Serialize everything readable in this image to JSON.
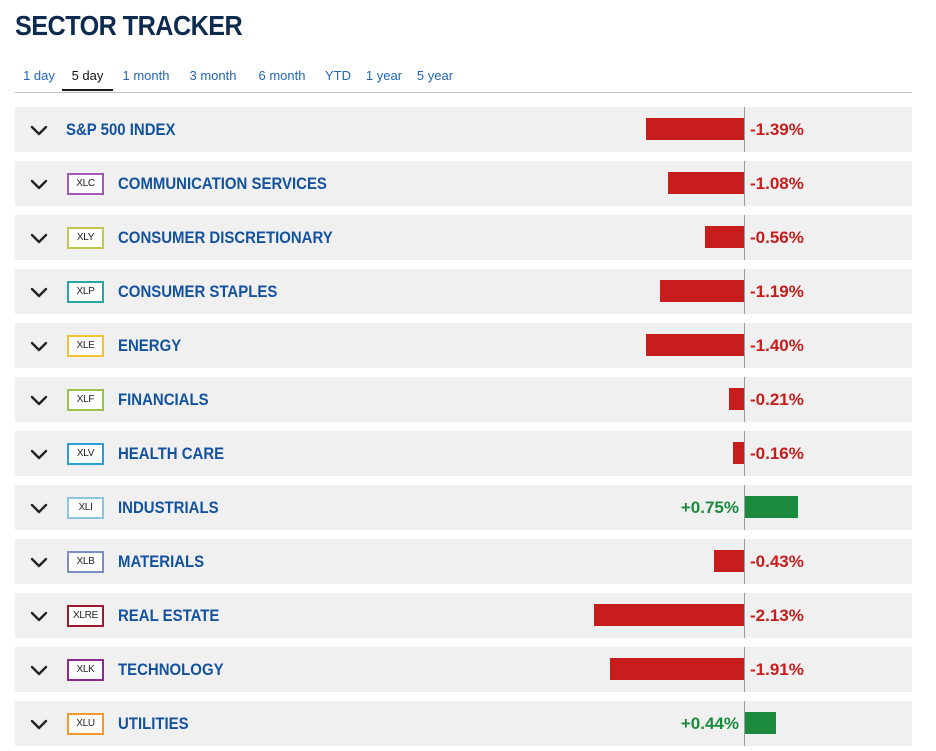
{
  "title": "SECTOR TRACKER",
  "tabs": [
    {
      "label": "1 day",
      "active": false
    },
    {
      "label": "5 day",
      "active": true
    },
    {
      "label": "1 month",
      "active": false
    },
    {
      "label": "3 month",
      "active": false
    },
    {
      "label": "6 month",
      "active": false
    },
    {
      "label": "YTD",
      "active": false
    },
    {
      "label": "1 year",
      "active": false
    },
    {
      "label": "5 year",
      "active": false
    }
  ],
  "colors": {
    "negative": "#c71d1d",
    "positive": "#1c8a3d",
    "link": "#12529e",
    "title": "#0d2b4e",
    "row_bg": "#f0f0f0"
  },
  "sectors": [
    {
      "ticker": null,
      "name": "S&P 500 INDEX",
      "change": -1.39,
      "change_label": "-1.39%",
      "badge_color": null
    },
    {
      "ticker": "XLC",
      "name": "COMMUNICATION SERVICES",
      "change": -1.08,
      "change_label": "-1.08%",
      "badge_color": "#a35ab5"
    },
    {
      "ticker": "XLY",
      "name": "CONSUMER DISCRETIONARY",
      "change": -0.56,
      "change_label": "-0.56%",
      "badge_color": "#c2c64a"
    },
    {
      "ticker": "XLP",
      "name": "CONSUMER STAPLES",
      "change": -1.19,
      "change_label": "-1.19%",
      "badge_color": "#2aa6a8"
    },
    {
      "ticker": "XLE",
      "name": "ENERGY",
      "change": -1.4,
      "change_label": "-1.40%",
      "badge_color": "#f1c232"
    },
    {
      "ticker": "XLF",
      "name": "FINANCIALS",
      "change": -0.21,
      "change_label": "-0.21%",
      "badge_color": "#9bc34a"
    },
    {
      "ticker": "XLV",
      "name": "HEALTH CARE",
      "change": -0.16,
      "change_label": "-0.16%",
      "badge_color": "#2a9fd6"
    },
    {
      "ticker": "XLI",
      "name": "INDUSTRIALS",
      "change": 0.75,
      "change_label": "+0.75%",
      "badge_color": "#8fc2e0"
    },
    {
      "ticker": "XLB",
      "name": "MATERIALS",
      "change": -0.43,
      "change_label": "-0.43%",
      "badge_color": "#7a8fc0"
    },
    {
      "ticker": "XLRE",
      "name": "REAL ESTATE",
      "change": -2.13,
      "change_label": "-2.13%",
      "badge_color": "#9b1b2a"
    },
    {
      "ticker": "XLK",
      "name": "TECHNOLOGY",
      "change": -1.91,
      "change_label": "-1.91%",
      "badge_color": "#8e2a8e"
    },
    {
      "ticker": "XLU",
      "name": "UTILITIES",
      "change": 0.44,
      "change_label": "+0.44%",
      "badge_color": "#f39a2b"
    }
  ]
}
